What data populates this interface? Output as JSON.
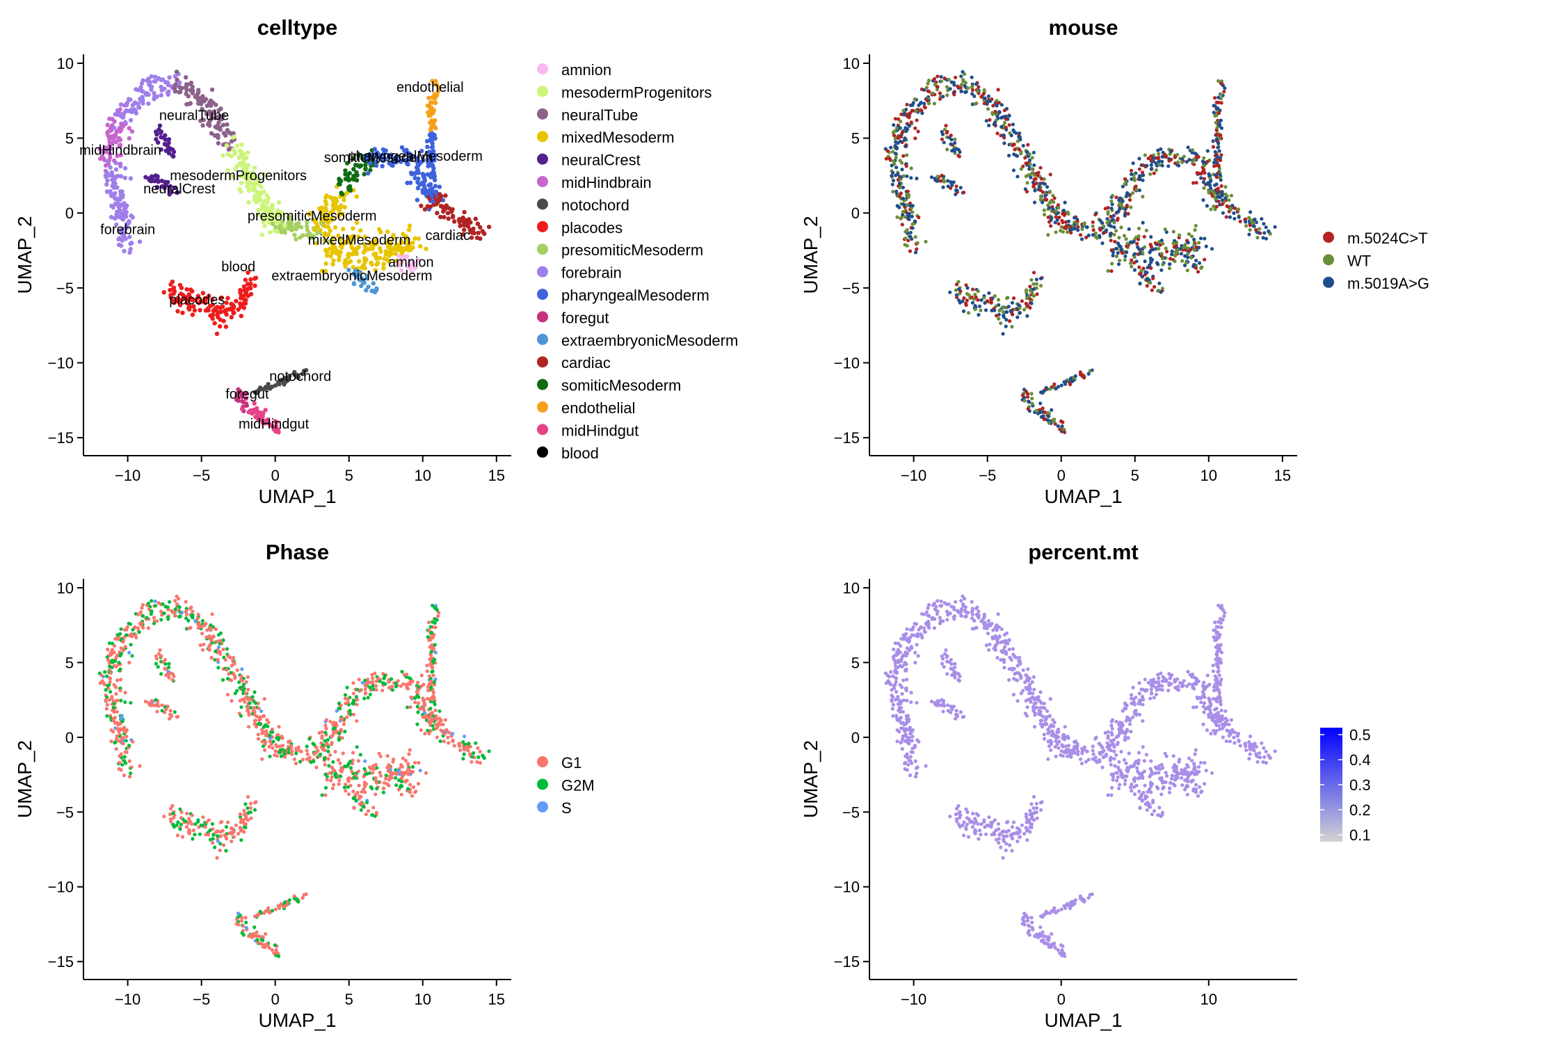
{
  "chart_data": [
    {
      "type": "scatter",
      "title": "celltype",
      "xlabel": "UMAP_1",
      "ylabel": "UMAP_2",
      "xlim": [
        -13,
        16
      ],
      "ylim": [
        -16.2,
        10.6
      ],
      "xticks": [
        -10,
        -5,
        0,
        5,
        10,
        15
      ],
      "yticks": [
        -15,
        -10,
        -5,
        0,
        5,
        10
      ],
      "grid": false,
      "legend_position": "right",
      "legend": [
        {
          "name": "amnion",
          "color": "#F8B8F0"
        },
        {
          "name": "mesodermProgenitors",
          "color": "#CCF57A"
        },
        {
          "name": "neuralTube",
          "color": "#8B6289"
        },
        {
          "name": "mixedMesoderm",
          "color": "#E8C400"
        },
        {
          "name": "neuralCrest",
          "color": "#53208F"
        },
        {
          "name": "midHindbrain",
          "color": "#C766CF"
        },
        {
          "name": "notochord",
          "color": "#4A4A4A"
        },
        {
          "name": "placodes",
          "color": "#EE1C1C"
        },
        {
          "name": "presomiticMesoderm",
          "color": "#A5CF62"
        },
        {
          "name": "forebrain",
          "color": "#9F7FE9"
        },
        {
          "name": "pharyngealMesoderm",
          "color": "#3F62DD"
        },
        {
          "name": "foregut",
          "color": "#C7317E"
        },
        {
          "name": "extraembryonicMesoderm",
          "color": "#4E95D4"
        },
        {
          "name": "cardiac",
          "color": "#B02424"
        },
        {
          "name": "somiticMesoderm",
          "color": "#0F6C12"
        },
        {
          "name": "endothelial",
          "color": "#F6A01A"
        },
        {
          "name": "midHindgut",
          "color": "#E6428A"
        },
        {
          "name": "blood",
          "color": "#000000"
        }
      ],
      "cluster_labels": [
        {
          "text": "endothelial",
          "x": 10.5,
          "y": 8.1
        },
        {
          "text": "neuralTube",
          "x": -5.5,
          "y": 6.2
        },
        {
          "text": "midHindbrain",
          "x": -10.5,
          "y": 3.9
        },
        {
          "text": "somiticMesoderm",
          "x": 7.0,
          "y": 3.4
        },
        {
          "text": "pharyngealMesoderm",
          "x": 9.5,
          "y": 3.5
        },
        {
          "text": "mesodermProgenitors",
          "x": -2.5,
          "y": 2.2
        },
        {
          "text": "neuralCrest",
          "x": -6.5,
          "y": 1.3
        },
        {
          "text": "presomiticMesoderm",
          "x": 2.5,
          "y": -0.5
        },
        {
          "text": "cardiac",
          "x": 11.7,
          "y": -1.8
        },
        {
          "text": "forebrain",
          "x": -10.0,
          "y": -1.4
        },
        {
          "text": "mixedMesoderm",
          "x": 5.7,
          "y": -2.1
        },
        {
          "text": "amnion",
          "x": 9.2,
          "y": -3.6
        },
        {
          "text": "blood",
          "x": -2.5,
          "y": -3.9
        },
        {
          "text": "extraembryonicMesoderm",
          "x": 5.2,
          "y": -4.5
        },
        {
          "text": "placodes",
          "x": -5.3,
          "y": -6.1
        },
        {
          "text": "notochord",
          "x": 1.7,
          "y": -11.2
        },
        {
          "text": "foregut",
          "x": -1.9,
          "y": -12.4
        },
        {
          "text": "midHindgut",
          "x": -0.1,
          "y": -14.4
        }
      ]
    },
    {
      "type": "scatter",
      "title": "mouse",
      "xlabel": "UMAP_1",
      "ylabel": "UMAP_2",
      "xlim": [
        -13,
        16
      ],
      "ylim": [
        -16.2,
        10.6
      ],
      "xticks": [
        -10,
        -5,
        0,
        5,
        10,
        15
      ],
      "yticks": [
        -15,
        -10,
        -5,
        0,
        5,
        10
      ],
      "grid": false,
      "legend_position": "right",
      "legend": [
        {
          "name": "m.5024C>T",
          "color": "#B22222"
        },
        {
          "name": "WT",
          "color": "#6B8E3A"
        },
        {
          "name": "m.5019A>G",
          "color": "#1F4E8C"
        }
      ]
    },
    {
      "type": "scatter",
      "title": "Phase",
      "xlabel": "UMAP_1",
      "ylabel": "UMAP_2",
      "xlim": [
        -13,
        16
      ],
      "ylim": [
        -16.2,
        10.6
      ],
      "xticks": [
        -10,
        -5,
        0,
        5,
        10,
        15
      ],
      "yticks": [
        -15,
        -10,
        -5,
        0,
        5,
        10
      ],
      "grid": false,
      "legend_position": "right",
      "legend": [
        {
          "name": "G1",
          "color": "#F8766D"
        },
        {
          "name": "G2M",
          "color": "#00BA38"
        },
        {
          "name": "S",
          "color": "#619CFF"
        }
      ]
    },
    {
      "type": "scatter",
      "title": "percent.mt",
      "xlabel": "UMAP_1",
      "ylabel": "UMAP_2",
      "xlim": [
        -13,
        16
      ],
      "ylim": [
        -16.2,
        10.6
      ],
      "xticks": [
        -10,
        0,
        10
      ],
      "yticks": [
        -15,
        -10,
        -5,
        0,
        5,
        10
      ],
      "grid": false,
      "legend_position": "right",
      "colorbar": {
        "min": 0.1,
        "max": 0.5,
        "ticks": [
          "0.5",
          "0.4",
          "0.3",
          "0.2",
          "0.1"
        ],
        "low_color": "#D3D3D3",
        "high_color": "#0000FF"
      },
      "point_color": "#A98EE8"
    }
  ],
  "umap_shape_segments": [
    {
      "from": [
        -11.5,
        3.5
      ],
      "to": [
        -10.5,
        6.5
      ],
      "width": 1.2,
      "cat": 5
    },
    {
      "from": [
        -10.5,
        6.5
      ],
      "to": [
        -8.5,
        8.4
      ],
      "width": 0.9,
      "cat": 9
    },
    {
      "from": [
        -8.5,
        8.4
      ],
      "to": [
        -6.5,
        8.6
      ],
      "width": 0.8,
      "cat": 9
    },
    {
      "from": [
        -6.5,
        8.6
      ],
      "to": [
        -4.5,
        7.0
      ],
      "width": 1.0,
      "cat": 2
    },
    {
      "from": [
        -4.5,
        7.0
      ],
      "to": [
        -3.0,
        4.5
      ],
      "width": 1.0,
      "cat": 2
    },
    {
      "from": [
        -3.0,
        4.5
      ],
      "to": [
        -1.5,
        1.5
      ],
      "width": 1.1,
      "cat": 1
    },
    {
      "from": [
        -1.5,
        1.5
      ],
      "to": [
        0.5,
        -1.0
      ],
      "width": 1.1,
      "cat": 1
    },
    {
      "from": [
        0.5,
        -1.0
      ],
      "to": [
        3.0,
        -1.0
      ],
      "width": 1.1,
      "cat": 8
    },
    {
      "from": [
        3.0,
        -1.0
      ],
      "to": [
        4.5,
        1.5
      ],
      "width": 1.2,
      "cat": 3
    },
    {
      "from": [
        4.5,
        1.5
      ],
      "to": [
        6.5,
        3.8
      ],
      "width": 0.9,
      "cat": 14
    },
    {
      "from": [
        6.5,
        3.8
      ],
      "to": [
        9.5,
        3.6
      ],
      "width": 0.8,
      "cat": 10
    },
    {
      "from": [
        9.5,
        3.6
      ],
      "to": [
        10.5,
        1.0
      ],
      "width": 1.0,
      "cat": 10
    },
    {
      "from": [
        10.5,
        1.0
      ],
      "to": [
        14.0,
        -1.5
      ],
      "width": 0.8,
      "cat": 13
    },
    {
      "from": [
        10.5,
        1.0
      ],
      "to": [
        10.6,
        5.5
      ],
      "width": 0.4,
      "cat": 10
    },
    {
      "from": [
        10.6,
        5.5
      ],
      "to": [
        10.8,
        8.8
      ],
      "width": 0.4,
      "cat": 15
    },
    {
      "from": [
        3.5,
        -2.0
      ],
      "to": [
        6.5,
        -2.8
      ],
      "width": 1.8,
      "cat": 3
    },
    {
      "from": [
        6.5,
        -2.8
      ],
      "to": [
        9.5,
        -2.0
      ],
      "width": 1.3,
      "cat": 3
    },
    {
      "from": [
        5.0,
        -3.8
      ],
      "to": [
        6.5,
        -5.0
      ],
      "width": 0.7,
      "cat": 12
    },
    {
      "from": [
        8.5,
        -3.0
      ],
      "to": [
        9.5,
        -3.8
      ],
      "width": 0.6,
      "cat": 0
    },
    {
      "from": [
        -11.0,
        3.0
      ],
      "to": [
        -10.2,
        -2.0
      ],
      "width": 1.0,
      "cat": 9
    },
    {
      "from": [
        -8.5,
        2.5
      ],
      "to": [
        -6.8,
        1.5
      ],
      "width": 0.6,
      "cat": 4
    },
    {
      "from": [
        -8.0,
        5.5
      ],
      "to": [
        -7.0,
        4.0
      ],
      "width": 0.6,
      "cat": 4
    },
    {
      "from": [
        -7.0,
        -5.5
      ],
      "to": [
        -3.0,
        -6.8
      ],
      "width": 1.1,
      "cat": 7
    },
    {
      "from": [
        -3.0,
        -6.8
      ],
      "to": [
        -1.5,
        -4.5
      ],
      "width": 0.6,
      "cat": 7
    },
    {
      "from": [
        -2.5,
        -11.8
      ],
      "to": [
        -2.0,
        -13.0
      ],
      "width": 0.5,
      "cat": 11
    },
    {
      "from": [
        -1.8,
        -13.0
      ],
      "to": [
        0.4,
        -14.6
      ],
      "width": 0.6,
      "cat": 16
    },
    {
      "from": [
        -1.5,
        -12.0
      ],
      "to": [
        2.2,
        -10.6
      ],
      "width": 0.3,
      "cat": 6
    }
  ]
}
